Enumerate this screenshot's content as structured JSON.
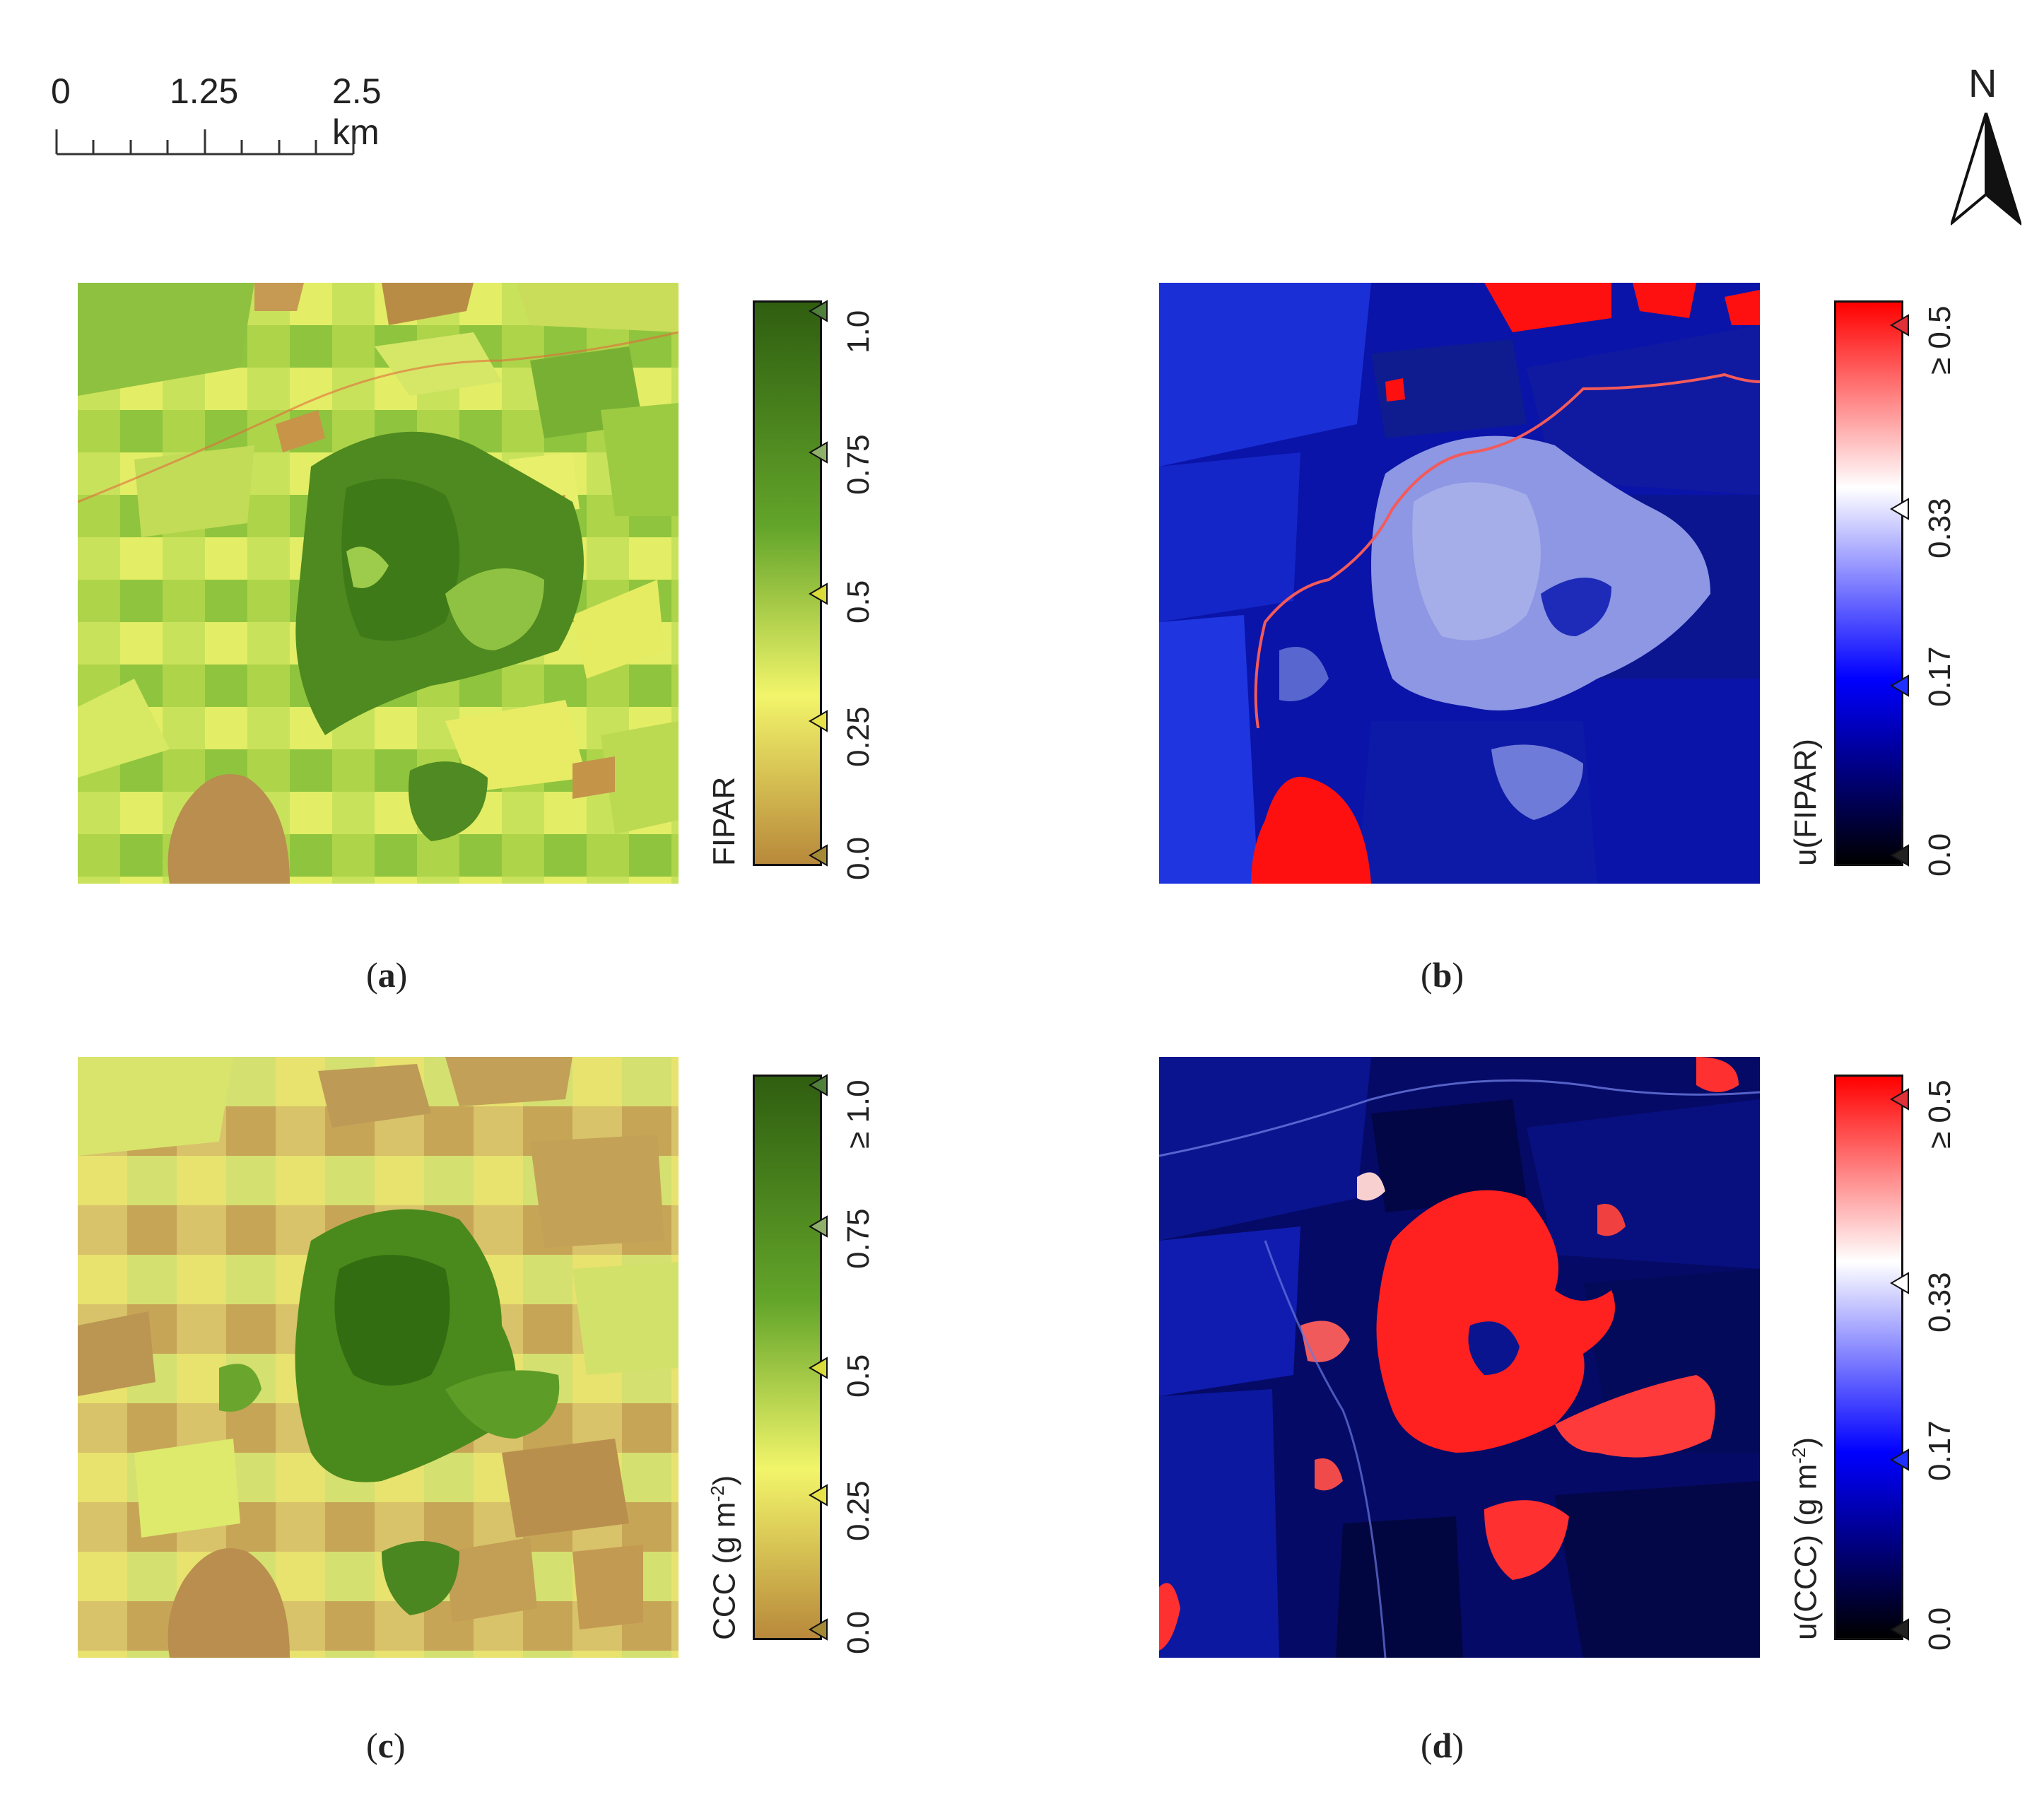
{
  "scale_bar": {
    "labels": [
      "0",
      "1.25",
      "2.5 km"
    ]
  },
  "north_arrow": {
    "label": "N"
  },
  "panels": [
    {
      "id": "a",
      "caption_letter": "a",
      "legend_title": "FIPAR",
      "legend_title_unit": "",
      "ticks": [
        "1.0",
        "0.75",
        "0.5",
        "0.25",
        "0.0"
      ],
      "palette": [
        "#2f5e10",
        "#63a52a",
        "#f2f56a",
        "#b8893b"
      ],
      "marker_colors": [
        "#4f7f3a",
        "#8fb06a",
        "#d9dc3a",
        "#e7e24a",
        "#a58a36"
      ]
    },
    {
      "id": "b",
      "caption_letter": "b",
      "legend_title": "u(FIPAR)",
      "legend_title_unit": "",
      "ticks": [
        "≥ 0.5",
        "0.33",
        "0.17",
        "0.0"
      ],
      "palette": [
        "#ff0000",
        "#ffffff",
        "#0000ff",
        "#000000"
      ],
      "marker_colors": [
        "#e0303a",
        "#ffffff",
        "#2030ff",
        "#222222"
      ]
    },
    {
      "id": "c",
      "caption_letter": "c",
      "legend_title": "CCC (g m",
      "legend_title_sup": "-2",
      "legend_title_end": ")",
      "ticks": [
        "≥ 1.0",
        "0.75",
        "0.5",
        "0.25",
        "0.0"
      ],
      "palette": [
        "#2f5e10",
        "#63a52a",
        "#f2f56a",
        "#b8893b"
      ],
      "marker_colors": [
        "#4f7f3a",
        "#8fb06a",
        "#d9dc3a",
        "#e7e24a",
        "#a58a36"
      ]
    },
    {
      "id": "d",
      "caption_letter": "d",
      "legend_title": "u(CCC) (g m",
      "legend_title_sup": "-2",
      "legend_title_end": ")",
      "ticks": [
        "≥ 0.5",
        "0.33",
        "0.17",
        "0.0"
      ],
      "palette": [
        "#ff0000",
        "#ffffff",
        "#0000ff",
        "#000000"
      ],
      "marker_colors": [
        "#e0303a",
        "#ffffff",
        "#2030ff",
        "#222222"
      ]
    }
  ],
  "captions_text": {
    "open": "(",
    "close": ")"
  }
}
